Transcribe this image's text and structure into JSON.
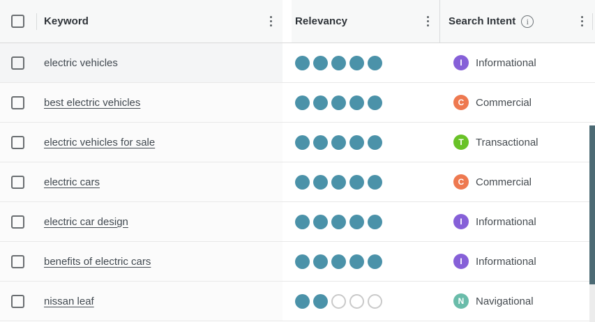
{
  "colors": {
    "header-bg": "#f7f8f8",
    "header-border": "#d9d9d9",
    "row-border": "#e8e8e8",
    "left-col-bg": "#fbfbfb",
    "left-col-bg-first": "#f4f5f6",
    "dot-filled": "#4b92a9",
    "dot-empty-border": "#c9c9c9",
    "scrollbar": "#4c6a74",
    "intent-informational": "#8660d8",
    "intent-commercial": "#ee7950",
    "intent-transactional": "#69c228",
    "intent-navigational": "#6abcaa"
  },
  "header": {
    "columns": [
      {
        "label": "Keyword"
      },
      {
        "label": "Relevancy"
      },
      {
        "label": "Search Intent"
      }
    ]
  },
  "rows": [
    {
      "keyword": "electric vehicles",
      "is_link": false,
      "relevancy_filled": 5,
      "relevancy_total": 5,
      "intent_letter": "I",
      "intent_label": "Informational",
      "intent_color": "#8660d8"
    },
    {
      "keyword": "best electric vehicles",
      "is_link": true,
      "relevancy_filled": 5,
      "relevancy_total": 5,
      "intent_letter": "C",
      "intent_label": "Commercial",
      "intent_color": "#ee7950"
    },
    {
      "keyword": "electric vehicles for sale",
      "is_link": true,
      "relevancy_filled": 5,
      "relevancy_total": 5,
      "intent_letter": "T",
      "intent_label": "Transactional",
      "intent_color": "#69c228"
    },
    {
      "keyword": "electric cars",
      "is_link": true,
      "relevancy_filled": 5,
      "relevancy_total": 5,
      "intent_letter": "C",
      "intent_label": "Commercial",
      "intent_color": "#ee7950"
    },
    {
      "keyword": "electric car design",
      "is_link": true,
      "relevancy_filled": 5,
      "relevancy_total": 5,
      "intent_letter": "I",
      "intent_label": "Informational",
      "intent_color": "#8660d8"
    },
    {
      "keyword": "benefits of electric cars",
      "is_link": true,
      "relevancy_filled": 5,
      "relevancy_total": 5,
      "intent_letter": "I",
      "intent_label": "Informational",
      "intent_color": "#8660d8"
    },
    {
      "keyword": "nissan leaf",
      "is_link": true,
      "relevancy_filled": 2,
      "relevancy_total": 5,
      "intent_letter": "N",
      "intent_label": "Navigational",
      "intent_color": "#6abcaa"
    }
  ]
}
